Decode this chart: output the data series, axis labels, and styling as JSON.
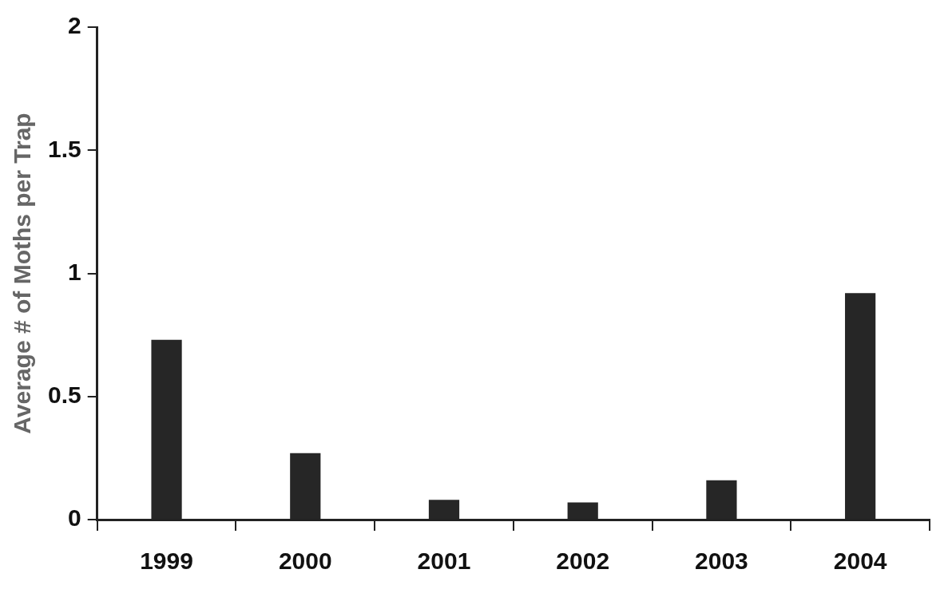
{
  "chart_data": {
    "type": "bar",
    "ylabel": "Average # of Moths per Trap",
    "categories": [
      "1999",
      "2000",
      "2001",
      "2002",
      "2003",
      "2004"
    ],
    "values": [
      0.73,
      0.27,
      0.08,
      0.07,
      0.16,
      0.92
    ],
    "color": "#262626",
    "ylim": [
      0,
      2
    ],
    "yticks": [
      0,
      0.5,
      1,
      1.5,
      2
    ],
    "grid": false,
    "legend": false
  }
}
